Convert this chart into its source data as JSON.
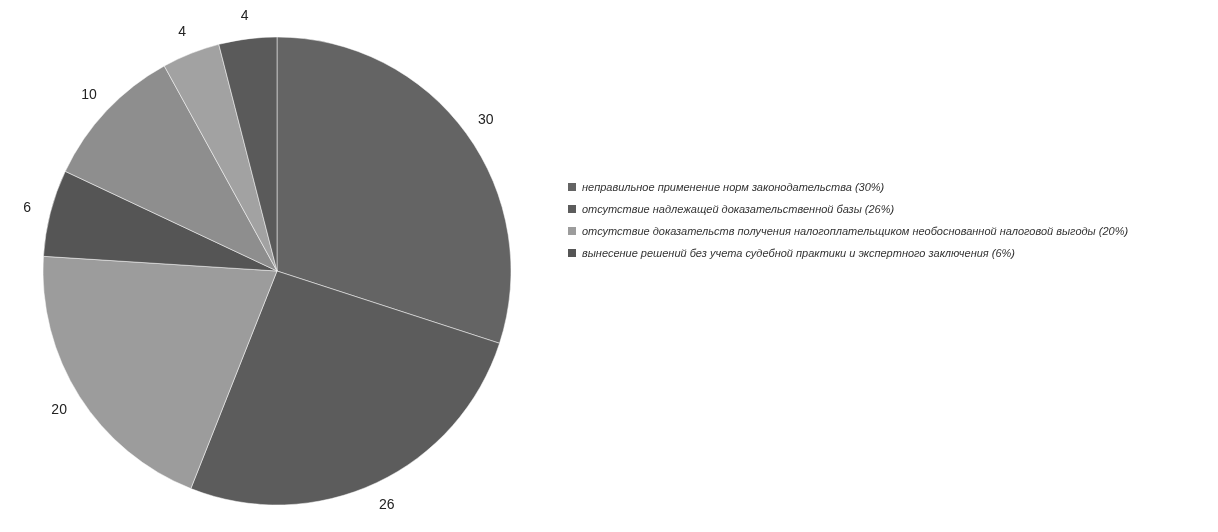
{
  "chart_data": {
    "type": "pie",
    "categories": [
      "неправильное применение норм законодательства (30%)",
      "отсутствие надлежащей доказательственной базы (26%)",
      "отсутствие доказательств получения налогоплательщиком необоснованной налоговой выгоды (20%)",
      "вынесение решений без учета судебной практики и экспертного заключения (6%)",
      null,
      null,
      null
    ],
    "values": [
      30,
      26,
      20,
      6,
      10,
      4,
      4
    ],
    "colors": [
      "#646464",
      "#5c5c5c",
      "#9c9c9c",
      "#555555",
      "#8e8e8e",
      "#a2a2a2",
      "#5a5a5a"
    ],
    "data_labels": true,
    "legend": "right"
  }
}
